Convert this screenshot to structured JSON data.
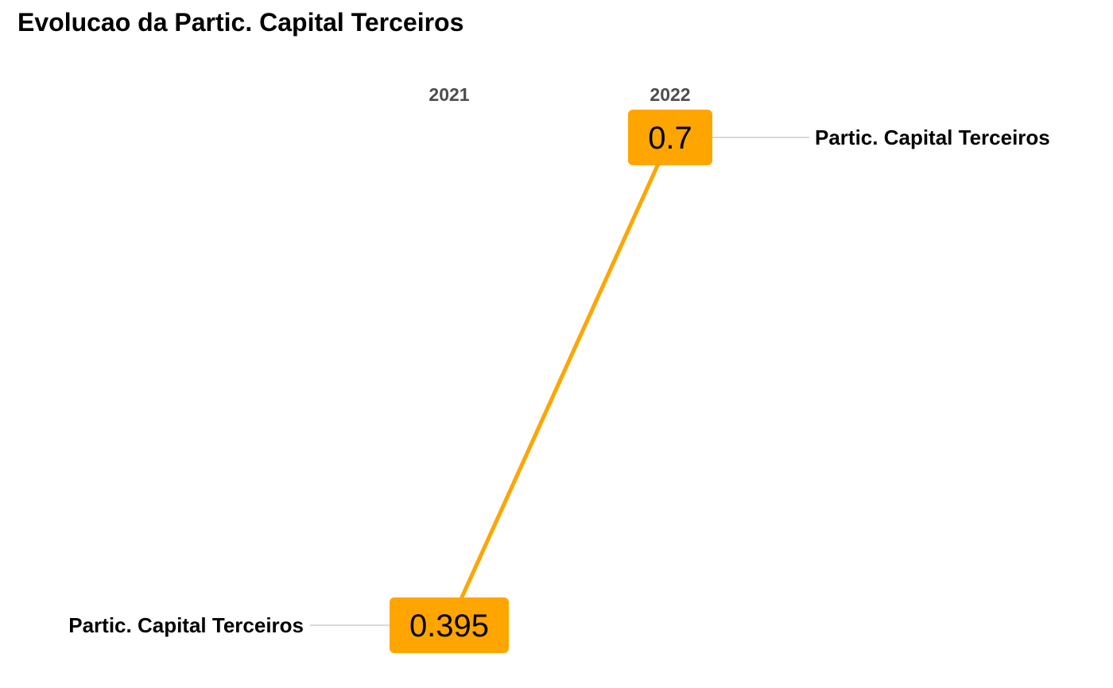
{
  "chart_data": {
    "type": "line",
    "title": "Evolucao da Partic. Capital Terceiros",
    "x": [
      "2021",
      "2022"
    ],
    "series": [
      {
        "name": "Partic. Capital Terceiros",
        "values": [
          0.395,
          0.7
        ],
        "value_labels": [
          "0.395",
          "0.7"
        ],
        "color": "#FFA500"
      }
    ],
    "grid": false,
    "legend": "none",
    "label_placement": "series name at left of first point and right of last point"
  },
  "colors": {
    "series": "#FFA500",
    "connector": "#d9d9d9",
    "year_text": "#4d4d4d"
  }
}
